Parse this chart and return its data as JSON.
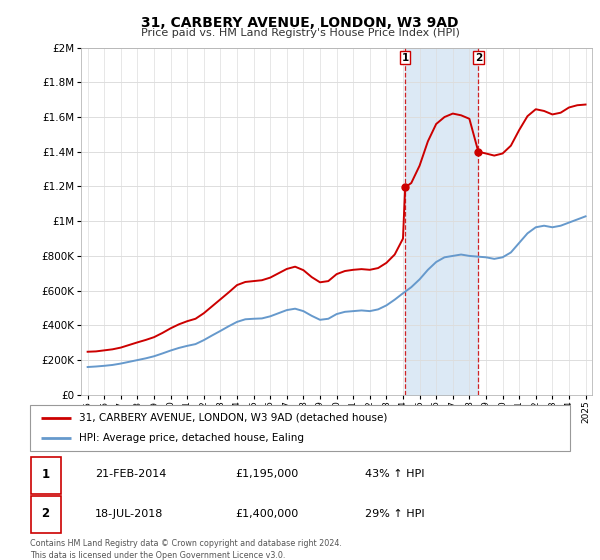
{
  "title": "31, CARBERY AVENUE, LONDON, W3 9AD",
  "subtitle": "Price paid vs. HM Land Registry's House Price Index (HPI)",
  "footer": "Contains HM Land Registry data © Crown copyright and database right 2024.\nThis data is licensed under the Open Government Licence v3.0.",
  "legend_house": "31, CARBERY AVENUE, LONDON, W3 9AD (detached house)",
  "legend_hpi": "HPI: Average price, detached house, Ealing",
  "sale1_date": "21-FEB-2014",
  "sale1_price": "£1,195,000",
  "sale1_hpi": "43% ↑ HPI",
  "sale2_date": "18-JUL-2018",
  "sale2_price": "£1,400,000",
  "sale2_hpi": "29% ↑ HPI",
  "house_color": "#cc0000",
  "hpi_color": "#6699cc",
  "shading_color": "#dce9f5",
  "vline_color": "#cc0000",
  "grid_color": "#dddddd",
  "ylim": [
    0,
    2000000
  ],
  "yticks": [
    0,
    200000,
    400000,
    600000,
    800000,
    1000000,
    1200000,
    1400000,
    1600000,
    1800000,
    2000000
  ],
  "sale1_year": 2014.13,
  "sale2_year": 2018.54,
  "sale1_price_val": 1195000,
  "sale2_price_val": 1400000,
  "years_hpi": [
    1995.0,
    1995.5,
    1996.0,
    1996.5,
    1997.0,
    1997.5,
    1998.0,
    1998.5,
    1999.0,
    1999.5,
    2000.0,
    2000.5,
    2001.0,
    2001.5,
    2002.0,
    2002.5,
    2003.0,
    2003.5,
    2004.0,
    2004.5,
    2005.0,
    2005.5,
    2006.0,
    2006.5,
    2007.0,
    2007.5,
    2008.0,
    2008.5,
    2009.0,
    2009.5,
    2010.0,
    2010.5,
    2011.0,
    2011.5,
    2012.0,
    2012.5,
    2013.0,
    2013.5,
    2014.0,
    2014.5,
    2015.0,
    2015.5,
    2016.0,
    2016.5,
    2017.0,
    2017.5,
    2018.0,
    2018.5,
    2019.0,
    2019.5,
    2020.0,
    2020.5,
    2021.0,
    2021.5,
    2022.0,
    2022.5,
    2023.0,
    2023.5,
    2024.0,
    2024.5,
    2025.0
  ],
  "hpi_vals": [
    160000,
    163000,
    167000,
    172000,
    180000,
    190000,
    200000,
    210000,
    222000,
    238000,
    255000,
    270000,
    282000,
    292000,
    315000,
    342000,
    368000,
    395000,
    420000,
    435000,
    438000,
    440000,
    452000,
    470000,
    488000,
    496000,
    482000,
    455000,
    432000,
    438000,
    465000,
    478000,
    482000,
    486000,
    482000,
    492000,
    515000,
    548000,
    585000,
    620000,
    665000,
    720000,
    765000,
    792000,
    800000,
    808000,
    800000,
    796000,
    792000,
    783000,
    792000,
    820000,
    875000,
    930000,
    965000,
    974000,
    965000,
    974000,
    992000,
    1010000,
    1028000
  ],
  "years_house": [
    1995.0,
    1995.5,
    1996.0,
    1996.5,
    1997.0,
    1997.5,
    1998.0,
    1998.5,
    1999.0,
    1999.5,
    2000.0,
    2000.5,
    2001.0,
    2001.5,
    2002.0,
    2002.5,
    2003.0,
    2003.5,
    2004.0,
    2004.5,
    2005.0,
    2005.5,
    2006.0,
    2006.5,
    2007.0,
    2007.5,
    2008.0,
    2008.5,
    2009.0,
    2009.5,
    2010.0,
    2010.5,
    2011.0,
    2011.5,
    2012.0,
    2012.5,
    2013.0,
    2013.5,
    2014.0,
    2014.13,
    2014.5,
    2015.0,
    2015.5,
    2016.0,
    2016.5,
    2017.0,
    2017.5,
    2018.0,
    2018.54,
    2019.0,
    2019.5,
    2020.0,
    2020.5,
    2021.0,
    2021.5,
    2022.0,
    2022.5,
    2023.0,
    2023.5,
    2024.0,
    2024.5,
    2025.0
  ],
  "house_vals": [
    248000,
    250000,
    256000,
    262000,
    272000,
    287000,
    302000,
    316000,
    332000,
    356000,
    383000,
    406000,
    424000,
    438000,
    470000,
    510000,
    550000,
    590000,
    632000,
    650000,
    655000,
    660000,
    675000,
    700000,
    725000,
    738000,
    718000,
    678000,
    648000,
    655000,
    695000,
    713000,
    720000,
    724000,
    720000,
    730000,
    760000,
    808000,
    900000,
    1195000,
    1220000,
    1320000,
    1460000,
    1560000,
    1600000,
    1620000,
    1610000,
    1590000,
    1400000,
    1390000,
    1378000,
    1390000,
    1435000,
    1525000,
    1605000,
    1645000,
    1635000,
    1615000,
    1625000,
    1655000,
    1668000,
    1672000
  ]
}
